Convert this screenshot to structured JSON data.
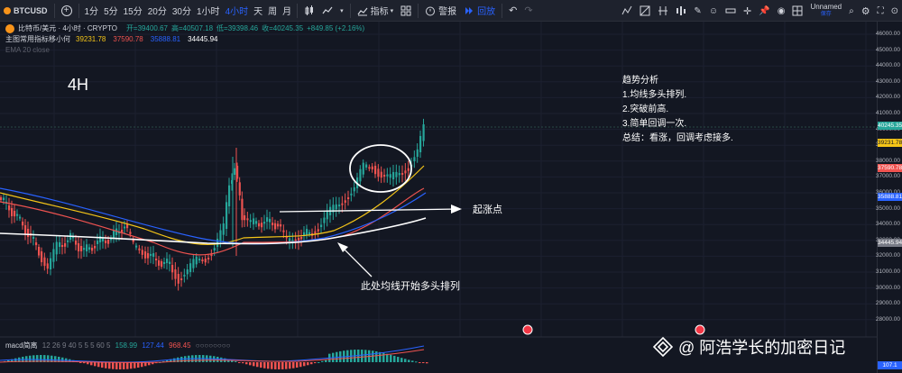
{
  "topbar": {
    "symbol": "BTCUSD",
    "add": "+",
    "intervals": [
      "1分",
      "5分",
      "15分",
      "20分",
      "30分",
      "1小时",
      "4小时",
      "天",
      "周",
      "月"
    ],
    "active_interval": "4小时",
    "indicators_label": "指标",
    "alert_label": "警报",
    "replay_label": "回放",
    "layout_name": "Unnamed",
    "layout_sub": "保存"
  },
  "legend": {
    "title": "比特币/美元 · 4小时 · CRYPTO",
    "open_label": "开=39400.67",
    "high_label": "高=40507.18",
    "low_label": "低=39398.46",
    "close_label": "收=40245.35",
    "change_label": "+849.85 (+2.16%)",
    "ma_label": "主图常用指标移小何",
    "ma_values": [
      "39231.78",
      "37590.78",
      "35888.81",
      "34445.94"
    ],
    "ema_label": "EMA 20 close"
  },
  "timeframe": "4H",
  "analysis": {
    "title": "趋势分析",
    "lines": [
      "1.均线多头排列.",
      "2.突破前高.",
      "3.简单回调一次.",
      "总结：看涨，回调考虑接多."
    ]
  },
  "annotations": {
    "start_point": "起涨点",
    "ma_bull": "此处均线开始多头排列"
  },
  "price_scale": {
    "ticks": [
      "46000.00",
      "45000.00",
      "44000.00",
      "43000.00",
      "42000.00",
      "41000.00",
      "40000.00",
      "39000.00",
      "38000.00",
      "37000.00",
      "36000.00",
      "35000.00",
      "34000.00",
      "33000.00",
      "32000.00",
      "31000.00",
      "30000.00",
      "29000.00",
      "28000.00"
    ],
    "tags": [
      {
        "text": "40245.35",
        "color": "#26a69a"
      },
      {
        "text": "39231.78",
        "color": "#f5c518"
      },
      {
        "text": "37590.78",
        "color": "#ef5350"
      },
      {
        "text": "35888.81",
        "color": "#2962ff"
      },
      {
        "text": "34445.94",
        "color": "#787b86"
      }
    ],
    "macd_tag": "107.1"
  },
  "macd": {
    "label": "macd简离",
    "params": "12 26 9 40 5 5 5 60 5",
    "v1": "158.99",
    "v2": "127.44",
    "v3": "968.45",
    "dots": "○○○○○○○○"
  },
  "watermark": {
    "text": "@ 阿浩学长的加密日记"
  },
  "colors": {
    "up": "#26a69a",
    "down": "#ef5350",
    "ma_fast": "#f5c518",
    "ma_mid": "#ef5350",
    "ma_slow": "#2962ff",
    "ma_long": "#ffffff"
  }
}
